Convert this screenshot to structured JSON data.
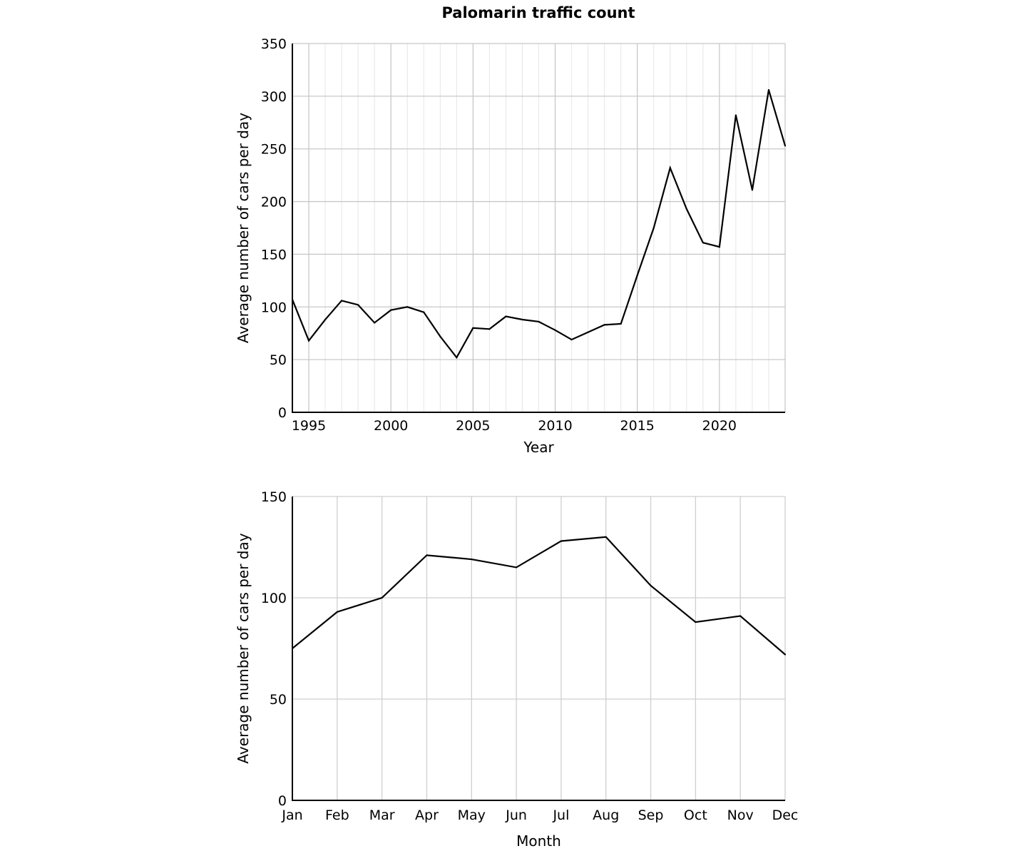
{
  "title": "Palomarin traffic count",
  "chart_data": [
    {
      "type": "line",
      "xlabel": "Year",
      "ylabel": "Average number of cars per day",
      "xlim": [
        1994,
        2024
      ],
      "ylim": [
        0,
        350
      ],
      "xticks": [
        1995,
        2000,
        2005,
        2010,
        2015,
        2020
      ],
      "yticks": [
        0,
        50,
        100,
        150,
        200,
        250,
        300,
        350
      ],
      "grid": "major and minor",
      "x": [
        1994,
        1995,
        1996,
        1997,
        1998,
        1999,
        2000,
        2001,
        2002,
        2003,
        2004,
        2005,
        2006,
        2007,
        2008,
        2009,
        2010,
        2011,
        2012,
        2013,
        2014,
        2015,
        2016,
        2017,
        2018,
        2019,
        2020,
        2021,
        2022,
        2023,
        2024
      ],
      "values": [
        107,
        68,
        88,
        106,
        102,
        85,
        97,
        100,
        95,
        72,
        52,
        80,
        79,
        91,
        88,
        86,
        78,
        69,
        76,
        83,
        84,
        130,
        175,
        232,
        193,
        161,
        157,
        282,
        211,
        306,
        253
      ]
    },
    {
      "type": "line",
      "xlabel": "Month",
      "ylabel": "Average number of cars per day",
      "ylim": [
        0,
        150
      ],
      "yticks": [
        0,
        50,
        100,
        150
      ],
      "grid": "major",
      "categories": [
        "Jan",
        "Feb",
        "Mar",
        "Apr",
        "May",
        "Jun",
        "Jul",
        "Aug",
        "Sep",
        "Oct",
        "Nov",
        "Dec"
      ],
      "values": [
        75,
        93,
        100,
        121,
        119,
        115,
        128,
        130,
        106,
        88,
        91,
        72
      ]
    }
  ]
}
